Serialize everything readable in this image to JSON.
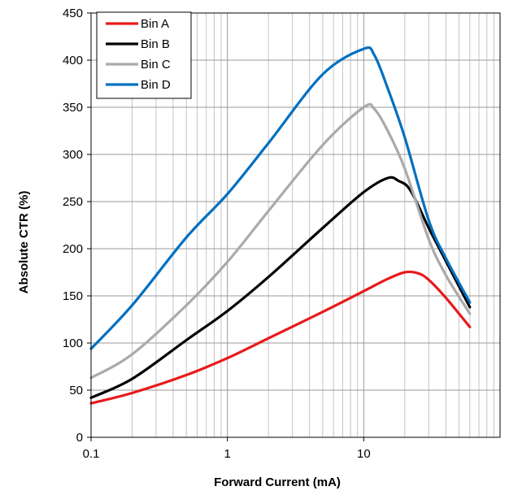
{
  "chart_data": {
    "type": "line",
    "title": "",
    "xlabel": "Forward Current (mA)",
    "ylabel": "Absolute CTR (%)",
    "x_scale": "log",
    "xlim": [
      0.1,
      100
    ],
    "ylim": [
      0,
      450
    ],
    "x_ticks": [
      {
        "value": 0.1,
        "label": "0.1"
      },
      {
        "value": 1,
        "label": "1"
      },
      {
        "value": 10,
        "label": "10"
      }
    ],
    "y_ticks": [
      {
        "value": 0,
        "label": "0"
      },
      {
        "value": 50,
        "label": "50"
      },
      {
        "value": 100,
        "label": "100"
      },
      {
        "value": 150,
        "label": "150"
      },
      {
        "value": 200,
        "label": "200"
      },
      {
        "value": 250,
        "label": "250"
      },
      {
        "value": 300,
        "label": "300"
      },
      {
        "value": 350,
        "label": "350"
      },
      {
        "value": 400,
        "label": "400"
      },
      {
        "value": 450,
        "label": "450"
      }
    ],
    "grid": true,
    "legend_position": "top-left",
    "series": [
      {
        "name": "Bin A",
        "color": "#e8191b",
        "x": [
          0.1,
          0.2,
          0.5,
          1,
          2,
          5,
          10,
          15,
          20,
          25,
          30,
          40,
          60
        ],
        "y": [
          36,
          47,
          66,
          84,
          105,
          133,
          155,
          168,
          175,
          174,
          167,
          148,
          117
        ]
      },
      {
        "name": "Bin B",
        "color": "#000000",
        "x": [
          0.1,
          0.2,
          0.5,
          1,
          2,
          5,
          10,
          15,
          18,
          22,
          30,
          40,
          60
        ],
        "y": [
          42,
          62,
          103,
          134,
          170,
          222,
          260,
          275,
          272,
          262,
          222,
          187,
          138
        ]
      },
      {
        "name": "Bin C",
        "color": "#aaaaaa",
        "x": [
          0.1,
          0.2,
          0.5,
          1,
          2,
          5,
          10,
          12,
          15,
          20,
          30,
          40,
          60
        ],
        "y": [
          63,
          88,
          140,
          186,
          240,
          310,
          350,
          348,
          325,
          285,
          210,
          172,
          131
        ]
      },
      {
        "name": "Bin D",
        "color": "#0070c0",
        "x": [
          0.1,
          0.2,
          0.5,
          1,
          2,
          5,
          10,
          12,
          15,
          20,
          30,
          40,
          60
        ],
        "y": [
          94,
          140,
          212,
          258,
          312,
          385,
          412,
          405,
          370,
          318,
          230,
          190,
          143
        ]
      }
    ]
  }
}
